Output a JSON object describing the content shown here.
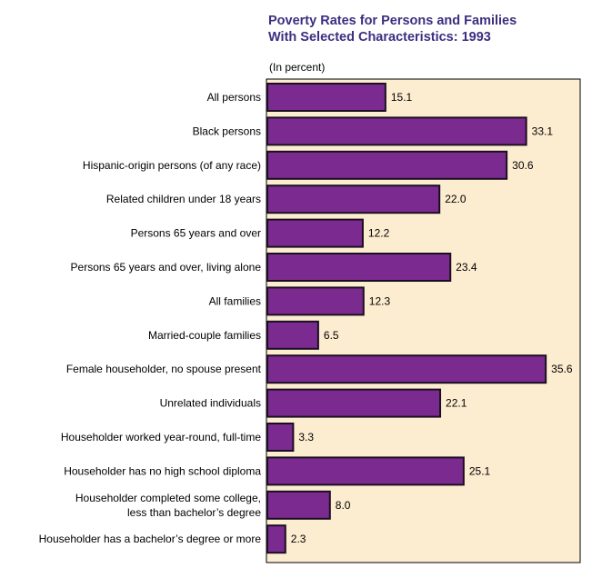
{
  "chart_data": {
    "type": "bar",
    "orientation": "horizontal",
    "title_lines": [
      "Poverty Rates for Persons and Families",
      "With Selected Characteristics:  1993"
    ],
    "unit_label": "(In percent)",
    "xlim": [
      0,
      36.2
    ],
    "grid": false,
    "colors": {
      "bar": "#7b2a90",
      "bar_border": "#1a0f1f",
      "plot_background": "#fcecd0",
      "title": "#3d2e80"
    },
    "categories": [
      [
        "All persons"
      ],
      [
        "Black persons"
      ],
      [
        "Hispanic-origin persons (of any race)"
      ],
      [
        "Related children under 18 years"
      ],
      [
        "Persons 65 years and over"
      ],
      [
        "Persons 65 years and over, living alone"
      ],
      [
        "All families"
      ],
      [
        "Married-couple families"
      ],
      [
        "Female householder, no spouse present"
      ],
      [
        "Unrelated individuals"
      ],
      [
        "Householder worked year-round, full-time"
      ],
      [
        "Householder has no high school diploma"
      ],
      [
        "Householder completed some college,",
        "less than bachelor’s degree"
      ],
      [
        "Householder has a bachelor’s degree or more"
      ]
    ],
    "values": [
      15.1,
      33.1,
      30.6,
      22.0,
      12.2,
      23.4,
      12.3,
      6.5,
      35.6,
      22.1,
      3.3,
      25.1,
      8.0,
      2.3
    ],
    "value_labels": [
      "15.1",
      "33.1",
      "30.6",
      "22.0",
      "12.2",
      "23.4",
      "12.3",
      "6.5",
      "35.6",
      "22.1",
      "3.3",
      "25.1",
      "8.0",
      "2.3"
    ]
  }
}
